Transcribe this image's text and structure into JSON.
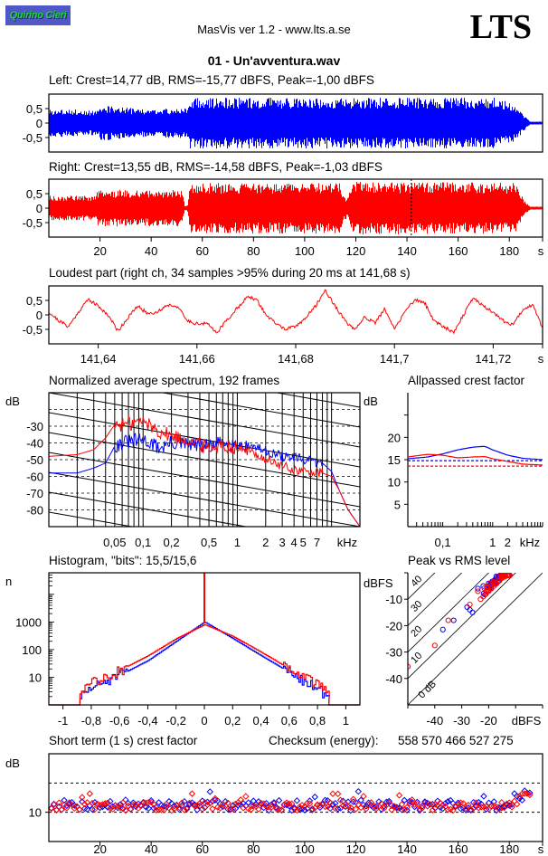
{
  "header": {
    "logo_text": "Quirino Cieri",
    "app_title": "MasVis ver 1.2 - www.lts.a.se",
    "brand": "LTS",
    "filename": "01 - Un'avventura.wav"
  },
  "colors": {
    "left": "#0000ff",
    "right": "#ff0000",
    "axis": "#000000",
    "logo_bg": "#5058c8",
    "logo_text": "#1fd63b"
  },
  "chart_data": [
    {
      "id": "left-waveform",
      "type": "area",
      "title": "Left: Crest=14,77 dB, RMS=-15,77 dBFS, Peak=-1,00 dBFS",
      "yticks": [
        "0,5",
        "0",
        "-0,5"
      ],
      "ytick_values": [
        0.5,
        0,
        -0.5
      ],
      "ylim": [
        -1,
        1
      ],
      "xlim": [
        0,
        193
      ],
      "envelope_time_s": [
        0,
        2,
        10,
        12,
        19,
        20,
        30,
        40,
        52,
        54,
        55,
        70,
        90,
        110,
        120,
        140,
        160,
        175,
        182,
        186,
        188,
        193
      ],
      "envelope_amp": [
        0.45,
        0.45,
        0.45,
        0.4,
        0.4,
        0.6,
        0.5,
        0.45,
        0.5,
        0.5,
        0.85,
        0.85,
        0.85,
        0.85,
        0.85,
        0.85,
        0.85,
        0.85,
        0.6,
        0.2,
        0.02,
        0.02
      ]
    },
    {
      "id": "right-waveform",
      "type": "area",
      "title": "Right: Crest=13,55 dB, RMS=-14,58 dBFS, Peak=-1,03 dBFS",
      "yticks": [
        "0,5",
        "0",
        "-0,5"
      ],
      "ytick_values": [
        0.5,
        0,
        -0.5
      ],
      "ylim": [
        -1,
        1
      ],
      "xlim": [
        0,
        193
      ],
      "xticks": [
        "20",
        "40",
        "60",
        "80",
        "100",
        "120",
        "140",
        "160",
        "180"
      ],
      "xtick_values": [
        20,
        40,
        60,
        80,
        100,
        120,
        140,
        160,
        180
      ],
      "xunit": "s",
      "marker_time_s": 141.68,
      "envelope_time_s": [
        0,
        18,
        19,
        52,
        53,
        54,
        55,
        114,
        115,
        117,
        118,
        182,
        186,
        188,
        193
      ],
      "envelope_amp": [
        0.4,
        0.4,
        0.6,
        0.6,
        0.05,
        0.05,
        0.85,
        0.85,
        0.35,
        0.35,
        0.88,
        0.85,
        0.2,
        0.02,
        0.02
      ]
    },
    {
      "id": "loudest-part",
      "type": "line",
      "title": "Loudest part (right ch, 34 samples >95% during 20 ms at 141,68 s)",
      "yticks": [
        "0,5",
        "0",
        "-0,5"
      ],
      "ytick_values": [
        0.5,
        0,
        -0.5
      ],
      "ylim": [
        -1,
        1
      ],
      "xlim": [
        141.63,
        141.73
      ],
      "xticks": [
        "141,64",
        "141,66",
        "141,68",
        "141,7",
        "141,72"
      ],
      "xtick_values": [
        141.64,
        141.66,
        141.68,
        141.7,
        141.72
      ],
      "xunit": "s",
      "x": [
        141.63,
        141.632,
        141.634,
        141.636,
        141.638,
        141.64,
        141.642,
        141.644,
        141.646,
        141.648,
        141.65,
        141.652,
        141.654,
        141.656,
        141.658,
        141.66,
        141.662,
        141.664,
        141.666,
        141.668,
        141.67,
        141.672,
        141.674,
        141.676,
        141.678,
        141.68,
        141.682,
        141.684,
        141.686,
        141.688,
        141.69,
        141.692,
        141.694,
        141.696,
        141.698,
        141.7,
        141.702,
        141.704,
        141.706,
        141.708,
        141.71,
        141.712,
        141.714,
        141.716,
        141.718,
        141.72,
        141.722,
        141.724,
        141.726,
        141.728,
        141.73
      ],
      "y": [
        0.1,
        -0.2,
        -0.4,
        0.1,
        0.55,
        0.3,
        0.0,
        -0.55,
        -0.1,
        0.3,
        0.05,
        0.1,
        0.35,
        0.3,
        -0.2,
        -0.3,
        -0.3,
        -0.6,
        -0.2,
        0.2,
        0.6,
        0.55,
        0.0,
        -0.3,
        -0.5,
        -0.4,
        -0.1,
        0.3,
        0.85,
        0.3,
        -0.2,
        -0.55,
        -0.05,
        -0.3,
        0.2,
        -0.5,
        0.1,
        0.5,
        0.45,
        -0.2,
        -0.4,
        -0.6,
        0.0,
        0.6,
        0.3,
        0.1,
        -0.2,
        -0.35,
        0.2,
        0.35,
        -0.45
      ]
    },
    {
      "id": "normalized-spectrum",
      "type": "line",
      "title": "Normalized average spectrum, 192 frames",
      "ylabel": "dB",
      "yticks": [
        "-30",
        "-40",
        "-50",
        "-60",
        "-70",
        "-80"
      ],
      "ytick_values": [
        -30,
        -40,
        -50,
        -60,
        -70,
        -80
      ],
      "ylim": [
        -90,
        -10
      ],
      "xscale": "log",
      "xlim_khz": [
        0.01,
        20
      ],
      "xticks": [
        "0,05",
        "0,1",
        "0,2",
        "0,5",
        "1",
        "2",
        "3",
        "4",
        "5",
        "7"
      ],
      "xtick_values": [
        0.05,
        0.1,
        0.2,
        0.5,
        1,
        2,
        3,
        4,
        5,
        7
      ],
      "xunit": "kHz",
      "grid": true,
      "series": [
        {
          "name": "left",
          "freq_khz": [
            0.01,
            0.02,
            0.03,
            0.04,
            0.05,
            0.06,
            0.08,
            0.1,
            0.15,
            0.2,
            0.3,
            0.5,
            0.7,
            1,
            1.5,
            2,
            3,
            4,
            5,
            6,
            7,
            8,
            10,
            12,
            15,
            20
          ],
          "values": [
            -58,
            -58,
            -55,
            -52,
            -42,
            -40,
            -39,
            -38,
            -43,
            -40,
            -41,
            -42,
            -40,
            -41,
            -42,
            -45,
            -48,
            -49,
            -50,
            -51,
            -52,
            -52,
            -57,
            -68,
            -80,
            -90
          ]
        },
        {
          "name": "right",
          "freq_khz": [
            0.01,
            0.02,
            0.03,
            0.04,
            0.05,
            0.06,
            0.08,
            0.1,
            0.15,
            0.2,
            0.3,
            0.5,
            0.7,
            1,
            1.5,
            2,
            3,
            4,
            5,
            6,
            7,
            8,
            10,
            12,
            15,
            20
          ],
          "values": [
            -48,
            -47,
            -44,
            -37,
            -29,
            -29,
            -28,
            -27,
            -33,
            -36,
            -38,
            -43,
            -41,
            -43,
            -46,
            -50,
            -54,
            -56,
            -57,
            -57,
            -58,
            -58,
            -60,
            -68,
            -80,
            -90
          ]
        }
      ]
    },
    {
      "id": "allpassed-crest",
      "type": "line",
      "title": "Allpassed crest factor",
      "ylabel": "dB",
      "yticks": [
        "20",
        "15",
        "10",
        "5"
      ],
      "ytick_values": [
        20,
        15,
        10,
        5
      ],
      "ylim": [
        0,
        30
      ],
      "xscale": "log",
      "xlim_khz": [
        0.02,
        10
      ],
      "xticks": [
        "0,1",
        "1",
        "2"
      ],
      "xtick_values": [
        0.1,
        1,
        2
      ],
      "xunit": "kHz",
      "series": [
        {
          "name": "left",
          "freq_khz": [
            0.02,
            0.05,
            0.1,
            0.2,
            0.4,
            0.7,
            1,
            2,
            4,
            10
          ],
          "values": [
            15.2,
            15.6,
            16.3,
            17.2,
            17.8,
            18.0,
            17.2,
            16.0,
            15.3,
            15.0
          ]
        },
        {
          "name": "right",
          "freq_khz": [
            0.02,
            0.05,
            0.1,
            0.2,
            0.4,
            0.7,
            1,
            2,
            4,
            10
          ],
          "values": [
            15.6,
            16.2,
            16.0,
            15.4,
            15.6,
            15.7,
            15.2,
            14.6,
            14.0,
            13.8
          ]
        }
      ],
      "reference_lines": [
        {
          "name": "left-crest",
          "value": 14.77
        },
        {
          "name": "right-crest",
          "value": 13.55
        }
      ]
    },
    {
      "id": "histogram",
      "type": "line",
      "title": "Histogram, \"bits\": 15,5/15,6",
      "ylabel": "n",
      "yscale": "log",
      "yticks": [
        "1000",
        "100",
        "10"
      ],
      "ytick_values": [
        1000,
        100,
        10
      ],
      "ylim": [
        1,
        60000
      ],
      "xlim": [
        -1.1,
        1.1
      ],
      "xticks": [
        "-1",
        "-0,8",
        "-0,6",
        "-0,4",
        "-0,2",
        "0",
        "0,2",
        "0,4",
        "0,6",
        "0,8",
        "1"
      ],
      "xtick_values": [
        -1,
        -0.8,
        -0.6,
        -0.4,
        -0.2,
        0,
        0.2,
        0.4,
        0.6,
        0.8,
        1
      ],
      "series": [
        {
          "name": "left",
          "x": [
            -0.88,
            -0.8,
            -0.6,
            -0.4,
            -0.2,
            0,
            0.2,
            0.4,
            0.6,
            0.8,
            0.88
          ],
          "values": [
            2,
            4,
            12,
            40,
            200,
            1000,
            250,
            60,
            15,
            4,
            2
          ]
        },
        {
          "name": "right",
          "x": [
            -0.88,
            -0.8,
            -0.6,
            -0.4,
            -0.2,
            0,
            0.2,
            0.4,
            0.6,
            0.8,
            0.88
          ],
          "values": [
            3,
            6,
            18,
            60,
            250,
            800,
            300,
            80,
            20,
            5,
            3
          ]
        }
      ],
      "center_spike": {
        "x": 0,
        "value": 60000
      }
    },
    {
      "id": "peak-vs-rms",
      "type": "scatter",
      "title": "Peak vs RMS level",
      "ylabel": "dBFS",
      "xlabel": "dBFS",
      "yticks": [
        "-10",
        "-20",
        "-30",
        "-40"
      ],
      "ytick_values": [
        -10,
        -20,
        -30,
        -40
      ],
      "xticks": [
        "-40",
        "-30",
        "-20"
      ],
      "xtick_values": [
        -40,
        -30,
        -20
      ],
      "xlim": [
        -50,
        0
      ],
      "ylim": [
        -50,
        0
      ],
      "crest_lines": [
        "0 dB",
        "10",
        "20",
        "30",
        "40"
      ],
      "crest_values": [
        0,
        10,
        20,
        30,
        40
      ],
      "series": [
        {
          "name": "left",
          "rms": [
            -37,
            -33,
            -28,
            -27,
            -26,
            -24,
            -22,
            -20,
            -19,
            -18,
            -17,
            -16,
            -15,
            -14,
            -13
          ],
          "peak": [
            -21.5,
            -18,
            -13,
            -14,
            -15,
            -6,
            -5,
            -4,
            -4,
            -3,
            -2,
            -1.5,
            -1,
            -1,
            -1
          ]
        },
        {
          "name": "right",
          "rms": [
            -50,
            -40,
            -35,
            -27,
            -24,
            -23,
            -22,
            -21,
            -20,
            -19,
            -18,
            -17,
            -16,
            -15,
            -14,
            -13
          ],
          "peak": [
            -35.5,
            -27.5,
            -18,
            -12,
            -7,
            -10,
            -9,
            -8,
            -7,
            -6,
            -5,
            -4,
            -3,
            -2,
            -1.5,
            -1
          ]
        }
      ]
    },
    {
      "id": "short-term-crest",
      "type": "scatter",
      "title": "Short term (1 s) crest factor",
      "ylabel": "dB",
      "yticks": [
        "10"
      ],
      "ytick_values": [
        10
      ],
      "ylim": [
        5,
        20
      ],
      "xlim": [
        0,
        193
      ],
      "xticks": [
        "20",
        "40",
        "60",
        "80",
        "100",
        "120",
        "140",
        "160",
        "180"
      ],
      "xtick_values": [
        20,
        40,
        60,
        80,
        100,
        120,
        140,
        160,
        180
      ],
      "xunit": "s",
      "reference_lines": [
        10,
        15
      ],
      "series": [
        {
          "name": "left",
          "seed": 7,
          "mean": 11.2,
          "spread": 0.9
        },
        {
          "name": "right",
          "seed": 13,
          "mean": 11.0,
          "spread": 0.7
        }
      ]
    }
  ],
  "checksum": {
    "label": "Checksum (energy):",
    "value": "558 570 466 527 275"
  }
}
